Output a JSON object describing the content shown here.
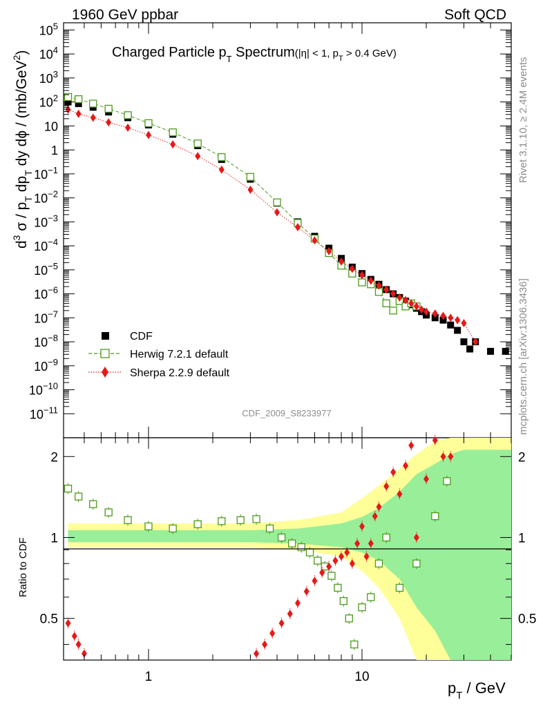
{
  "header": {
    "left": "1960 GeV ppbar",
    "right": "Soft QCD"
  },
  "side": {
    "rivet": "Rivet 3.1.10, ≥ 2.4M events",
    "mcplots": "mcplots.cern.ch [arXiv:1306.3436]"
  },
  "chart_data": {
    "type": "scatter",
    "title_main": "Charged Particle p",
    "title_sub": "T",
    "title_tail": " Spectrum",
    "title_cut": "(|η| < 1, p",
    "title_cut_sub": "T",
    "title_cut_tail": " > 0.4 GeV)",
    "analysis": "CDF_2009_S8233977",
    "xlabel": "p",
    "xlabel_sub": "T",
    "xlabel_tail": " / GeV",
    "ylabel": "d³σ / p_T dp_T dy dϕ / (mb/GeV²)",
    "ratio_ylabel": "Ratio to CDF",
    "xlim": [
      0.4,
      50
    ],
    "ylim_log": [
      -12,
      5.3
    ],
    "ratio_ylim": [
      0.35,
      2.35
    ],
    "x_tick_labels": [
      "1",
      "10"
    ],
    "y_tick_labels": [
      {
        "m": "10",
        "e": "5"
      },
      {
        "m": "10",
        "e": "4"
      },
      {
        "m": "10",
        "e": "3"
      },
      {
        "m": "10",
        "e": "2"
      },
      {
        "m": "10",
        "e": ""
      },
      {
        "m": "1",
        "e": ""
      },
      {
        "m": "10",
        "e": "−1"
      },
      {
        "m": "10",
        "e": "−2"
      },
      {
        "m": "10",
        "e": "−3"
      },
      {
        "m": "10",
        "e": "−4"
      },
      {
        "m": "10",
        "e": "−5"
      },
      {
        "m": "10",
        "e": "−6"
      },
      {
        "m": "10",
        "e": "−7"
      },
      {
        "m": "10",
        "e": "−8"
      },
      {
        "m": "10",
        "e": "−9"
      },
      {
        "m": "10",
        "e": "−10"
      },
      {
        "m": "10",
        "e": "−11"
      }
    ],
    "ratio_tick_labels": [
      "2",
      "1",
      "0.5"
    ],
    "legend": [
      {
        "label": "CDF",
        "color": "#000000"
      },
      {
        "label": "Herwig 7.2.1 default",
        "color": "#4a9a1a"
      },
      {
        "label": "Sherpa 2.2.9 default",
        "color": "#e61919"
      }
    ],
    "series": [
      {
        "name": "CDF",
        "x": [
          0.42,
          0.47,
          0.55,
          0.65,
          0.8,
          1.0,
          1.3,
          1.7,
          2.2,
          3.0,
          4.0,
          5.0,
          6.0,
          7.0,
          8.0,
          9.0,
          10.0,
          11.0,
          12.0,
          13.0,
          14.0,
          15.0,
          16.0,
          17.0,
          18.0,
          19.0,
          20.0,
          22.0,
          24.0,
          26.0,
          28.0,
          30.0,
          32.0,
          34.0,
          40.0,
          47.0
        ],
        "y": [
          100,
          85,
          60,
          38,
          22,
          11,
          4.5,
          1.5,
          0.4,
          0.06,
          0.006,
          0.001,
          0.00025,
          8e-05,
          3e-05,
          1.3e-05,
          7e-06,
          4e-06,
          2.5e-06,
          1.5e-06,
          1e-06,
          7e-07,
          5e-07,
          3.5e-07,
          2.5e-07,
          1.8e-07,
          1.3e-07,
          1e-07,
          8e-08,
          5e-08,
          3e-08,
          1e-08,
          5e-09,
          1e-08,
          4e-09,
          4e-09
        ]
      },
      {
        "name": "Herwig 7.2.1 default",
        "x": [
          0.42,
          0.47,
          0.55,
          0.65,
          0.8,
          1.0,
          1.3,
          1.7,
          2.2,
          3.0,
          4.0,
          5.0,
          6.0,
          7.0,
          8.0,
          9.0,
          10.0,
          11.0,
          12.0,
          13.0,
          14.0,
          15.0,
          16.0,
          17.0,
          18.0
        ],
        "y": [
          160,
          130,
          85,
          52,
          28,
          13,
          5.4,
          1.85,
          0.5,
          0.075,
          0.0065,
          0.0009,
          0.0002,
          5e-05,
          1.5e-05,
          7e-06,
          3e-06,
          2.5e-06,
          1.2e-06,
          4e-07,
          2e-07,
          5e-07,
          3e-07,
          4e-07,
          3e-07
        ]
      },
      {
        "name": "Sherpa 2.2.9 default",
        "x": [
          0.42,
          0.47,
          0.55,
          0.65,
          0.8,
          1.0,
          1.3,
          1.7,
          2.2,
          3.0,
          4.0,
          5.0,
          6.0,
          7.0,
          8.0,
          9.0,
          10.0,
          11.0,
          12.0,
          13.0,
          14.0,
          15.0,
          16.0,
          17.0,
          18.0,
          19.0,
          20.0,
          22.0,
          24.0,
          26.0,
          28.0,
          30.0,
          34.0
        ],
        "y": [
          48,
          32,
          22,
          14,
          8.5,
          4.2,
          1.7,
          0.55,
          0.15,
          0.022,
          0.0025,
          0.0006,
          0.00017,
          6e-05,
          2.2e-05,
          1.1e-05,
          6e-06,
          3.5e-06,
          2.2e-06,
          1.5e-06,
          1e-06,
          7e-07,
          5.5e-07,
          4e-07,
          3e-07,
          2.2e-07,
          1.8e-07,
          1.5e-07,
          1.2e-07,
          1e-07,
          8e-08,
          6e-08,
          1e-08
        ]
      }
    ],
    "ratio_series": [
      {
        "name": "Herwig 7.2.1 default",
        "x": [
          0.42,
          0.47,
          0.55,
          0.65,
          0.8,
          1.0,
          1.3,
          1.7,
          2.2,
          2.7,
          3.2,
          3.7,
          4.2,
          4.7,
          5.2,
          5.7,
          6.2,
          6.7,
          7.2,
          7.7,
          8.2,
          8.7,
          9.2,
          10.0,
          11.0,
          12.0,
          13.0,
          15.0,
          18.0,
          22.0,
          25.0
        ],
        "y": [
          1.52,
          1.42,
          1.33,
          1.24,
          1.16,
          1.1,
          1.08,
          1.12,
          1.15,
          1.16,
          1.17,
          1.08,
          1.0,
          0.95,
          0.92,
          0.88,
          0.82,
          0.78,
          0.72,
          0.65,
          0.58,
          0.5,
          0.4,
          0.55,
          0.6,
          0.8,
          1.0,
          0.65,
          0.8,
          1.2,
          1.62
        ]
      },
      {
        "name": "Sherpa 2.2.9 default",
        "x": [
          0.42,
          0.45,
          0.47,
          0.5,
          3.2,
          3.5,
          3.8,
          4.2,
          4.6,
          5.0,
          5.5,
          6.0,
          6.5,
          7.0,
          7.5,
          8.0,
          8.5,
          9.0,
          9.5,
          10.0,
          10.5,
          11.0,
          11.5,
          12.0,
          13.0,
          14.0,
          15.0,
          16.0,
          17.0,
          18.0,
          20.0,
          22.0,
          24.0,
          26.0
        ],
        "y": [
          0.48,
          0.43,
          0.4,
          0.37,
          0.37,
          0.4,
          0.44,
          0.48,
          0.52,
          0.57,
          0.63,
          0.69,
          0.74,
          0.78,
          0.82,
          0.85,
          0.88,
          0.8,
          0.95,
          1.1,
          0.85,
          0.95,
          1.2,
          1.3,
          1.55,
          1.75,
          1.45,
          1.85,
          2.2,
          1.0,
          1.65,
          2.3,
          2.0,
          2.0
        ]
      }
    ]
  }
}
